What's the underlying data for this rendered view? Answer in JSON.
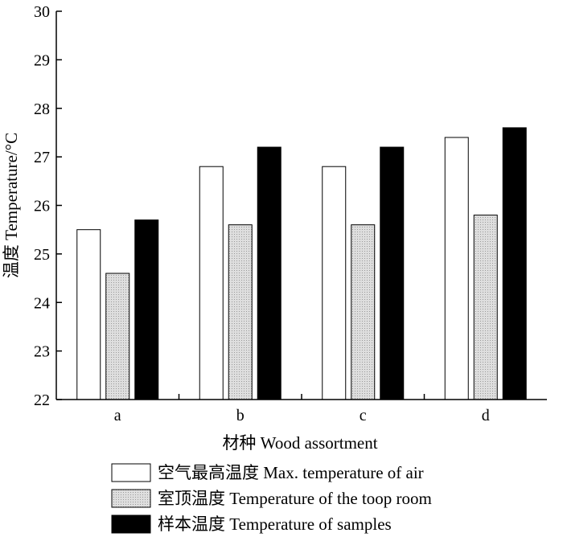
{
  "chart_data": {
    "type": "bar",
    "categories": [
      "a",
      "b",
      "c",
      "d"
    ],
    "series": [
      {
        "name": "空气最高温度 Max. temperature of air",
        "values": [
          25.5,
          26.8,
          26.8,
          27.4
        ],
        "color": "#ffffff"
      },
      {
        "name": "室顶温度 Temperature of the toop room",
        "values": [
          24.6,
          25.6,
          25.6,
          25.8
        ],
        "color": "#d3d3d3"
      },
      {
        "name": "样本温度 Temperature of samples",
        "values": [
          25.7,
          27.2,
          27.2,
          27.6
        ],
        "color": "#000000"
      }
    ],
    "xlabel": "材种 Wood assortment",
    "ylabel": "温度 Temperature/°C",
    "ylim": [
      22,
      30
    ],
    "yticks": [
      22,
      23,
      24,
      25,
      26,
      27,
      28,
      29,
      30
    ],
    "grid": false,
    "legend_position": "bottom"
  }
}
